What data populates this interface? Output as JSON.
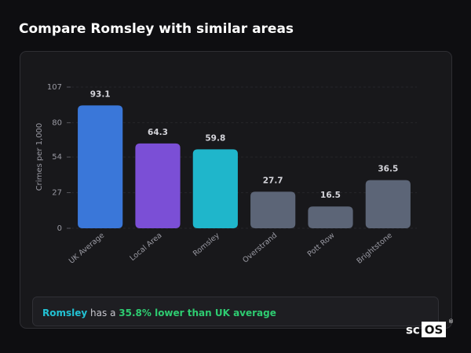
{
  "title": "Compare Romsley with similar areas",
  "chart_data": {
    "type": "bar",
    "y_label": "Crimes per 1,000",
    "categories": [
      "UK Average",
      "Local Area",
      "Romsley",
      "Overstrand",
      "Pott Row",
      "Brightstone"
    ],
    "values": [
      93.1,
      64.3,
      59.8,
      27.7,
      16.5,
      36.5
    ],
    "colors": [
      "#3a77d9",
      "#7b4fd6",
      "#1fb6cb",
      "#5c6577",
      "#5c6577",
      "#5c6577"
    ],
    "ylim": [
      0,
      107
    ],
    "yticks": [
      0,
      27,
      54,
      80,
      107
    ],
    "grid": true
  },
  "footer": {
    "area": "Romsley",
    "text": "has a",
    "highlight": "35.8% lower than UK average"
  },
  "logo": {
    "prefix": "sc",
    "boxed": "OS",
    "mark": "®"
  }
}
